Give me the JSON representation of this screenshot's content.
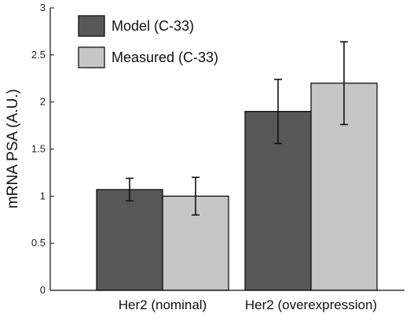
{
  "chart_data": {
    "type": "bar",
    "title": "",
    "xlabel": "",
    "ylabel": "mRNA PSA (A.U.)",
    "ylim": [
      0,
      3
    ],
    "yticks": [
      0,
      0.5,
      1,
      1.5,
      2,
      2.5,
      3
    ],
    "ytick_labels": [
      "0",
      "0.5",
      "1",
      "1.5",
      "2",
      "2.5",
      "3"
    ],
    "categories": [
      "Her2 (nominal)",
      "Her2 (overexpression)"
    ],
    "series": [
      {
        "name": "Model (C-33)",
        "color": "#575757",
        "values": [
          1.07,
          1.9
        ],
        "err_low": [
          0.95,
          1.56
        ],
        "err_high": [
          1.19,
          2.24
        ]
      },
      {
        "name": "Measured (C-33)",
        "color": "#c6c6c6",
        "values": [
          1.0,
          2.2
        ],
        "err_low": [
          0.8,
          1.76
        ],
        "err_high": [
          1.2,
          2.64
        ]
      }
    ],
    "legend": "top-left",
    "grid": false
  }
}
